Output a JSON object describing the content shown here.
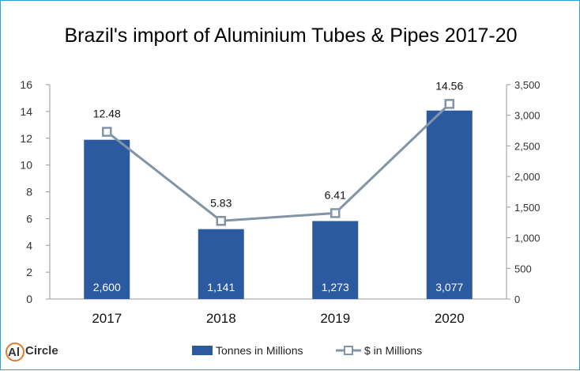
{
  "chart_data": {
    "type": "bar+line",
    "title": "Brazil's import of Aluminium Tubes & Pipes 2017-20",
    "categories": [
      "2017",
      "2018",
      "2019",
      "2020"
    ],
    "series": [
      {
        "name": "Tonnes in Millions",
        "type": "bar",
        "axis": "right",
        "color": "#2b5aa0",
        "values": [
          2600,
          1141,
          1273,
          3077
        ],
        "labels": [
          "2,600",
          "1,141",
          "1,273",
          "3,077"
        ]
      },
      {
        "name": "$ in Millions",
        "type": "line",
        "axis": "left",
        "color": "#8294a8",
        "values": [
          12.48,
          5.83,
          6.41,
          14.56
        ],
        "labels": [
          "12.48",
          "5.83",
          "6.41",
          "14.56"
        ]
      }
    ],
    "y_left": {
      "min": 0,
      "max": 16,
      "ticks": [
        "0",
        "2",
        "4",
        "6",
        "8",
        "10",
        "12",
        "14",
        "16"
      ]
    },
    "y_right": {
      "min": 0,
      "max": 3500,
      "ticks": [
        "0",
        "500",
        "1,000",
        "1,500",
        "2,000",
        "2,500",
        "3,000",
        "3,500"
      ]
    },
    "grid": false,
    "legend_position": "bottom"
  },
  "logo": {
    "text": "Circle",
    "prefix": "Al"
  },
  "colors": {
    "bar": "#2b5aa0",
    "line": "#8294a8",
    "marker_fill": "#ffffff",
    "frame": "#2aa3d8"
  }
}
